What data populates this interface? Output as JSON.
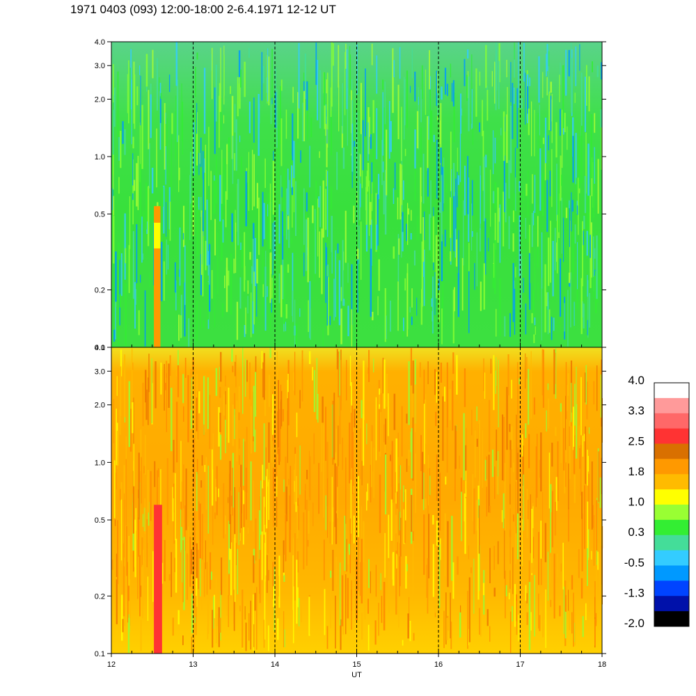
{
  "title": "1971 0403 (093) 12:00-18:00 2-6.4.1971 12-12 UT",
  "chart_data": [
    {
      "type": "heatmap",
      "panel": "upper",
      "xlabel": "",
      "ylabel": "",
      "xlim": [
        12,
        18
      ],
      "ylim": [
        0.1,
        4.0
      ],
      "yscale": "log",
      "xticks": [
        12,
        13,
        14,
        15,
        16,
        17,
        18
      ],
      "yticks": [
        "0.1",
        "0.2",
        "0.5",
        "1.0",
        "2.0",
        "3.0",
        "4.0"
      ],
      "yvalues": [
        0.1,
        0.2,
        0.5,
        1.0,
        2.0,
        3.0,
        4.0
      ],
      "dashed_verticals": [
        13,
        14,
        15,
        16,
        17
      ],
      "dominant_level": 0.3,
      "features": [
        {
          "x_start": 12.52,
          "x_end": 12.6,
          "y_max": 0.55,
          "level": 1.8
        }
      ]
    },
    {
      "type": "heatmap",
      "panel": "lower",
      "xlabel": "UT",
      "ylabel": "",
      "xlim": [
        12,
        18
      ],
      "ylim": [
        0.1,
        4.0
      ],
      "yscale": "log",
      "xticks": [
        12,
        13,
        14,
        15,
        16,
        17,
        18
      ],
      "xticklabels": [
        "12",
        "13",
        "14",
        "15",
        "16",
        "17",
        "18"
      ],
      "yticks": [
        "0.1",
        "0.2",
        "0.5",
        "1.0",
        "2.0",
        "3.0",
        "4.0"
      ],
      "yvalues": [
        0.1,
        0.2,
        0.5,
        1.0,
        2.0,
        3.0,
        4.0
      ],
      "dashed_verticals": [
        13,
        14,
        15,
        16,
        17
      ],
      "dominant_level": 1.8,
      "features": [
        {
          "x_start": 12.52,
          "x_end": 12.62,
          "y_max": 0.6,
          "level": 2.5
        }
      ]
    }
  ],
  "colorbar": {
    "labels": [
      "4.0",
      "3.3",
      "2.5",
      "1.8",
      "1.0",
      "0.3",
      "-0.5",
      "-1.3",
      "-2.0"
    ],
    "colors": [
      "#ffffff",
      "#ff9a9a",
      "#ff6868",
      "#ff3333",
      "#d97000",
      "#ff9900",
      "#ffbb00",
      "#ffff00",
      "#99ff33",
      "#33ee33",
      "#44dd99",
      "#33ccff",
      "#0099ff",
      "#0044ff",
      "#0011aa",
      "#000000"
    ]
  }
}
